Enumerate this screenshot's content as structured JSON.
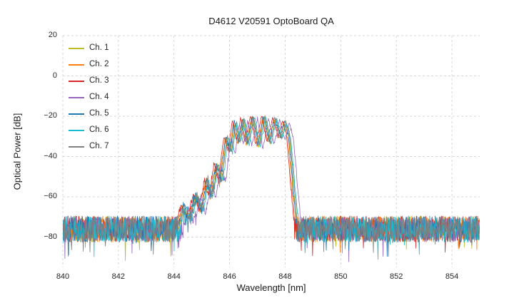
{
  "figure": {
    "background": "#ffffff"
  },
  "chart_data": {
    "type": "line",
    "title": "D4612 V20591 OptoBoard QA",
    "xlabel": "Wavelength [nm]",
    "ylabel": "Optical Power [dB]",
    "xlim": [
      840,
      855
    ],
    "ylim": [
      -95,
      20
    ],
    "xticks": [
      840,
      842,
      844,
      846,
      848,
      850,
      852,
      854
    ],
    "yticks": [
      20,
      0,
      -20,
      -40,
      -60,
      -80
    ],
    "grid": {
      "on": true,
      "dash": [
        3,
        3
      ],
      "color": "#cccccc",
      "linewidth": 0.8
    },
    "legend_position": "upper-left",
    "noise_floor": {
      "mean_db": -76,
      "spread_db": 13,
      "spike_probability": 0.025,
      "spike_depth_db": 12
    },
    "envelope_keypoints": [
      [
        840.0,
        -76
      ],
      [
        844.15,
        -76
      ],
      [
        844.35,
        -64
      ],
      [
        844.55,
        -71
      ],
      [
        844.8,
        -59
      ],
      [
        845.0,
        -67
      ],
      [
        845.2,
        -52
      ],
      [
        845.35,
        -60
      ],
      [
        845.55,
        -44
      ],
      [
        845.7,
        -52
      ],
      [
        845.9,
        -30
      ],
      [
        846.05,
        -38
      ],
      [
        846.2,
        -22.5
      ],
      [
        846.35,
        -33
      ],
      [
        846.5,
        -21
      ],
      [
        846.65,
        -34
      ],
      [
        846.85,
        -20
      ],
      [
        847.05,
        -35
      ],
      [
        847.25,
        -20
      ],
      [
        847.45,
        -33
      ],
      [
        847.65,
        -21
      ],
      [
        847.85,
        -31
      ],
      [
        848.0,
        -22.5
      ],
      [
        848.15,
        -30
      ],
      [
        848.3,
        -55
      ],
      [
        848.45,
        -76
      ],
      [
        855.0,
        -76
      ]
    ],
    "sample_step_nm": 0.015,
    "series": [
      {
        "name": "Ch. 1",
        "color": "#bcbd22",
        "dx": 0.0,
        "dy": 0.0,
        "seed": 11
      },
      {
        "name": "Ch. 2",
        "color": "#ff7f0e",
        "dx": -0.06,
        "dy": -0.5,
        "seed": 22
      },
      {
        "name": "Ch. 3",
        "color": "#d62728",
        "dx": -0.1,
        "dy": 0.5,
        "seed": 33
      },
      {
        "name": "Ch. 4",
        "color": "#9467bd",
        "dx": 0.15,
        "dy": -1.0,
        "seed": 44
      },
      {
        "name": "Ch. 5",
        "color": "#1f77b4",
        "dx": -0.03,
        "dy": 0.3,
        "seed": 55
      },
      {
        "name": "Ch. 6",
        "color": "#17becf",
        "dx": 0.05,
        "dy": -0.3,
        "seed": 66
      },
      {
        "name": "Ch. 7",
        "color": "#7f7f7f",
        "dx": 0.02,
        "dy": 0.0,
        "seed": 77
      }
    ]
  }
}
